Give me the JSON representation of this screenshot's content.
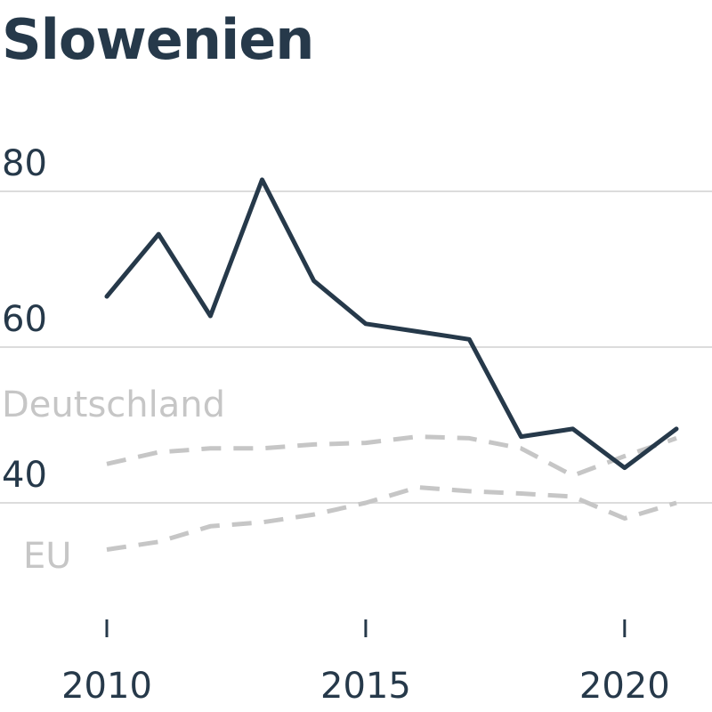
{
  "chart_data": {
    "type": "line",
    "title": "Slowenien",
    "xlabel": "",
    "ylabel": "",
    "xlim": [
      2010,
      2021
    ],
    "ylim": [
      30,
      80
    ],
    "y_ticks": [
      "40",
      "60",
      "80"
    ],
    "x_ticks": [
      "2010",
      "2015",
      "2020"
    ],
    "grid": true,
    "x": [
      2010,
      2011,
      2012,
      2013,
      2014,
      2015,
      2016,
      2017,
      2018,
      2019,
      2020,
      2021
    ],
    "series": [
      {
        "key": "slovenia",
        "style": "solid",
        "color": "#26394a",
        "values": [
          66.5,
          74.5,
          64,
          81.5,
          68.5,
          63,
          62,
          61,
          48.5,
          49.5,
          44.5,
          49.5
        ]
      },
      {
        "key": "germany",
        "name": "Deutschland",
        "style": "dashed",
        "color": "#c6c6c6",
        "values": [
          45,
          46.5,
          47,
          47,
          47.5,
          47.7,
          48.5,
          48.3,
          47,
          43.5,
          46,
          48.3
        ]
      },
      {
        "key": "eu",
        "name": "EU",
        "style": "dashed",
        "color": "#c6c6c6",
        "values": [
          34,
          35,
          37,
          37.5,
          38.5,
          40,
          42,
          41.5,
          41.2,
          40.8,
          38,
          40
        ]
      }
    ]
  }
}
